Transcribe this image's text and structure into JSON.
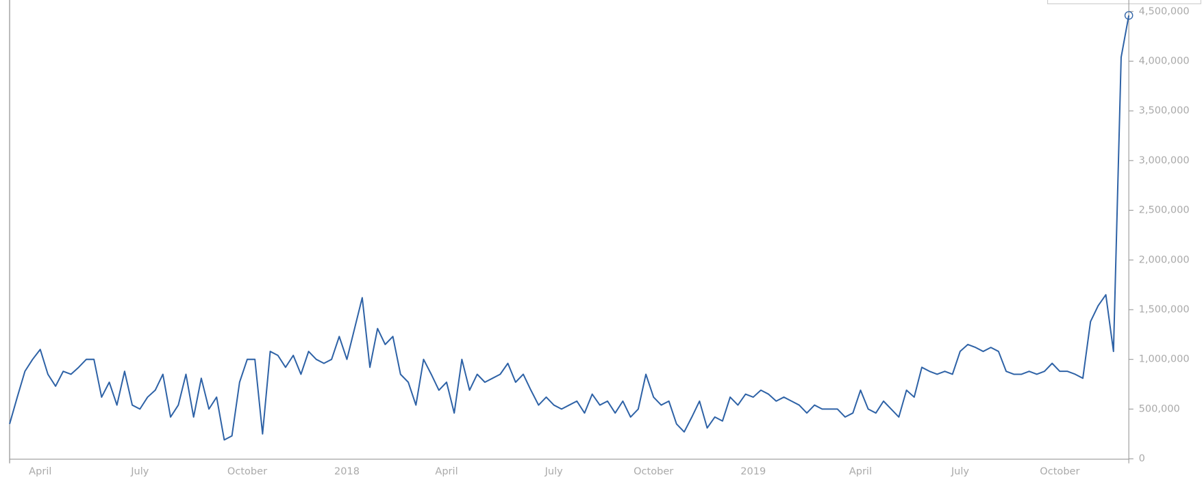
{
  "chart_data": {
    "type": "line",
    "color": "#2e62a6",
    "categories": [
      null,
      null,
      null,
      null,
      "April",
      null,
      null,
      null,
      null,
      null,
      null,
      null,
      null,
      null,
      null,
      null,
      null,
      "July",
      null,
      null,
      null,
      null,
      null,
      null,
      null,
      null,
      null,
      null,
      null,
      null,
      null,
      "October",
      null,
      null,
      null,
      null,
      null,
      null,
      null,
      null,
      null,
      null,
      null,
      null,
      "2018",
      null,
      null,
      null,
      null,
      null,
      null,
      null,
      null,
      null,
      null,
      null,
      null,
      "April",
      null,
      null,
      null,
      null,
      null,
      null,
      null,
      null,
      null,
      null,
      null,
      null,
      null,
      "July",
      null,
      null,
      null,
      null,
      null,
      null,
      null,
      null,
      null,
      null,
      null,
      null,
      "October",
      null,
      null,
      null,
      null,
      null,
      null,
      null,
      null,
      null,
      null,
      null,
      null,
      "2019",
      null,
      null,
      null,
      null,
      null,
      null,
      null,
      null,
      null,
      null,
      null,
      null,
      null,
      "April",
      null,
      null,
      null,
      null,
      null,
      null,
      null,
      null,
      null,
      null,
      null,
      null,
      "July",
      null,
      null,
      null,
      null,
      null,
      null,
      null,
      null,
      null,
      null,
      null,
      null,
      "October",
      null,
      null,
      null,
      null,
      null,
      null,
      null,
      null,
      null
    ],
    "values": [
      350000,
      620000,
      880000,
      1000000,
      1100000,
      850000,
      730000,
      880000,
      850000,
      920000,
      1000000,
      1000000,
      620000,
      770000,
      540000,
      880000,
      540000,
      500000,
      620000,
      690000,
      850000,
      420000,
      540000,
      850000,
      420000,
      810000,
      500000,
      620000,
      190000,
      230000,
      770000,
      1000000,
      1000000,
      250000,
      1080000,
      1040000,
      920000,
      1040000,
      850000,
      1080000,
      1000000,
      960000,
      1000000,
      1230000,
      1000000,
      1310000,
      1620000,
      920000,
      1310000,
      1150000,
      1230000,
      850000,
      770000,
      540000,
      1000000,
      850000,
      690000,
      770000,
      460000,
      1000000,
      690000,
      850000,
      770000,
      810000,
      850000,
      960000,
      770000,
      850000,
      690000,
      540000,
      620000,
      540000,
      500000,
      540000,
      580000,
      460000,
      650000,
      540000,
      580000,
      460000,
      580000,
      420000,
      500000,
      850000,
      620000,
      540000,
      580000,
      350000,
      270000,
      420000,
      580000,
      310000,
      420000,
      380000,
      620000,
      540000,
      650000,
      620000,
      690000,
      650000,
      580000,
      620000,
      580000,
      540000,
      460000,
      540000,
      500000,
      500000,
      500000,
      420000,
      460000,
      690000,
      500000,
      460000,
      580000,
      500000,
      420000,
      690000,
      620000,
      920000,
      880000,
      850000,
      880000,
      850000,
      1080000,
      1150000,
      1120000,
      1080000,
      1120000,
      1080000,
      880000,
      850000,
      850000,
      880000,
      850000,
      880000,
      960000,
      880000,
      880000,
      850000,
      810000,
      1380000,
      1540000,
      1650000,
      1080000,
      4040000,
      4460000
    ],
    "ylim": [
      0,
      4500000
    ],
    "yticks": [
      0,
      {
        "value": 500000,
        "label": "500,000"
      },
      {
        "value": 1000000,
        "label": "1,000,000"
      },
      {
        "value": 1500000,
        "label": "1,500,000"
      },
      {
        "value": 2000000,
        "label": "2,000,000"
      },
      {
        "value": 2500000,
        "label": "2,500,000"
      },
      {
        "value": 3000000,
        "label": "3,000,000"
      },
      {
        "value": 3500000,
        "label": "3,500,000"
      },
      {
        "value": 4000000,
        "label": "4,000,000"
      },
      {
        "value": 4500000,
        "label": "4,500,000"
      }
    ]
  }
}
